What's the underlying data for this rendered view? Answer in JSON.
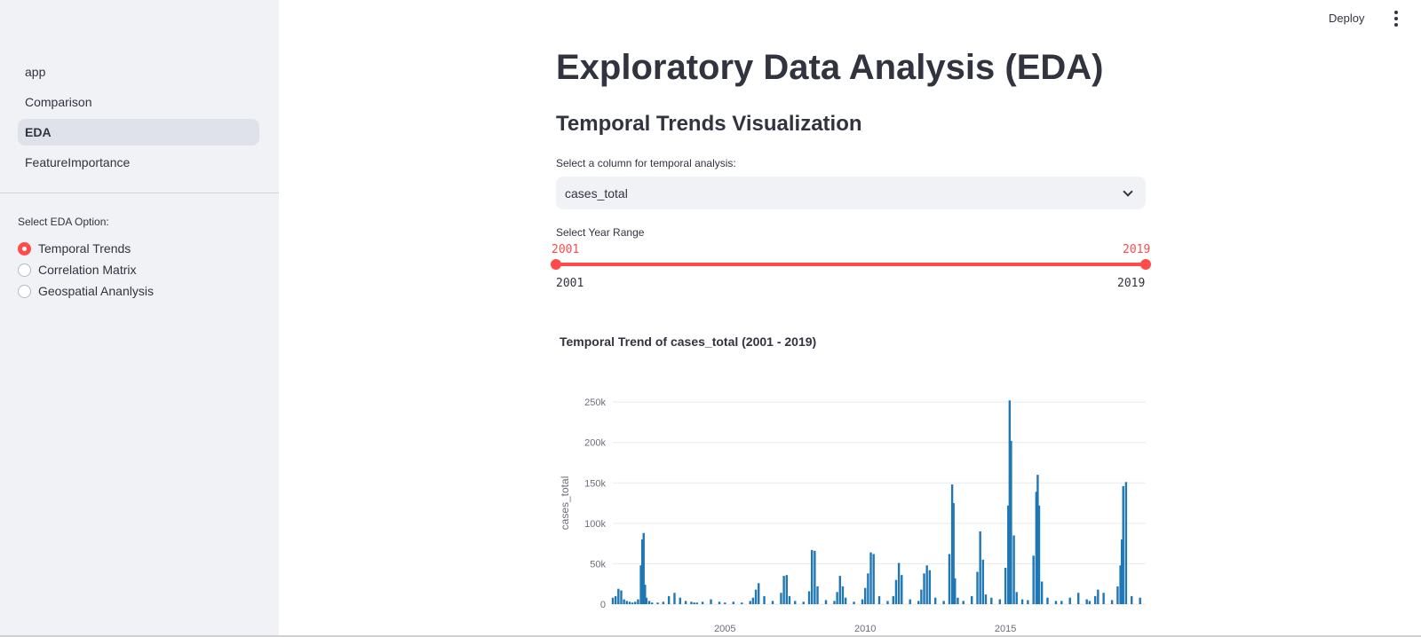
{
  "sidebar": {
    "nav": [
      {
        "label": "app"
      },
      {
        "label": "Comparison"
      },
      {
        "label": "EDA"
      },
      {
        "label": "FeatureImportance"
      }
    ],
    "active_nav": "EDA",
    "radio_title": "Select EDA Option:",
    "radio_options": [
      {
        "label": "Temporal Trends"
      },
      {
        "label": "Correlation Matrix"
      },
      {
        "label": "Geospatial Ananlysis"
      }
    ],
    "radio_selected": "Temporal Trends"
  },
  "header": {
    "deploy_label": "Deploy"
  },
  "main": {
    "title": "Exploratory Data Analysis (EDA)",
    "section_title": "Temporal Trends Visualization",
    "column_select": {
      "label": "Select a column for temporal analysis:",
      "value": "cases_total"
    },
    "year_slider": {
      "label": "Select Year Range",
      "low_value": "2001",
      "high_value": "2019",
      "min_label": "2001",
      "max_label": "2019",
      "accent": "#ff4b4b"
    }
  },
  "chart_data": {
    "type": "bar",
    "title": "Temporal Trend of cases_total (2001 - 2019)",
    "xlabel": "",
    "ylabel": "cases_total",
    "ylim": [
      0,
      260000
    ],
    "y_ticks": [
      "0",
      "50k",
      "100k",
      "150k",
      "200k",
      "250k"
    ],
    "y_tick_values": [
      0,
      50000,
      100000,
      150000,
      200000,
      250000
    ],
    "x_ticks": [
      "2005",
      "2010",
      "2015"
    ],
    "x_tick_values": [
      2005,
      2010,
      2015
    ],
    "xlim": [
      2001,
      2020
    ],
    "grid": true,
    "color": "#1f77b4",
    "x": [
      2001.0,
      2001.1,
      2001.2,
      2001.3,
      2001.4,
      2001.5,
      2001.6,
      2001.7,
      2001.8,
      2001.9,
      2002.0,
      2002.05,
      2002.1,
      2002.15,
      2002.2,
      2002.3,
      2002.4,
      2002.6,
      2002.8,
      2003.0,
      2003.2,
      2003.4,
      2003.6,
      2003.8,
      2003.9,
      2004.0,
      2004.2,
      2004.5,
      2004.8,
      2005.0,
      2005.3,
      2005.6,
      2005.9,
      2006.0,
      2006.1,
      2006.2,
      2006.4,
      2006.7,
      2007.0,
      2007.1,
      2007.2,
      2007.3,
      2007.5,
      2007.8,
      2008.0,
      2008.1,
      2008.2,
      2008.3,
      2008.6,
      2008.9,
      2009.0,
      2009.1,
      2009.2,
      2009.3,
      2009.6,
      2009.9,
      2010.0,
      2010.1,
      2010.2,
      2010.3,
      2010.5,
      2010.8,
      2011.0,
      2011.1,
      2011.2,
      2011.3,
      2011.6,
      2011.9,
      2012.0,
      2012.1,
      2012.2,
      2012.3,
      2012.5,
      2012.8,
      2013.0,
      2013.1,
      2013.15,
      2013.2,
      2013.3,
      2013.5,
      2013.8,
      2014.0,
      2014.1,
      2014.2,
      2014.3,
      2014.5,
      2014.8,
      2015.0,
      2015.1,
      2015.15,
      2015.2,
      2015.3,
      2015.4,
      2015.6,
      2015.8,
      2016.0,
      2016.1,
      2016.15,
      2016.2,
      2016.3,
      2016.5,
      2016.8,
      2017.0,
      2017.3,
      2017.6,
      2017.9,
      2018.0,
      2018.2,
      2018.3,
      2018.5,
      2018.8,
      2019.0,
      2019.1,
      2019.15,
      2019.2,
      2019.3,
      2019.5,
      2019.8
    ],
    "values": [
      8000,
      10000,
      19000,
      17000,
      6000,
      4000,
      3000,
      2000,
      3000,
      6000,
      48000,
      80000,
      88000,
      24000,
      8000,
      4000,
      2000,
      2000,
      3000,
      10000,
      14000,
      8000,
      4000,
      3000,
      2000,
      2000,
      3000,
      6000,
      3000,
      2000,
      3000,
      2000,
      4000,
      8000,
      18000,
      26000,
      10000,
      4000,
      14000,
      35000,
      36000,
      10000,
      4000,
      3000,
      16000,
      67000,
      66000,
      22000,
      5000,
      4000,
      15000,
      35000,
      22000,
      8000,
      3000,
      6000,
      20000,
      38000,
      64000,
      62000,
      10000,
      4000,
      10000,
      30000,
      51000,
      36000,
      6000,
      4000,
      18000,
      38000,
      48000,
      42000,
      8000,
      4000,
      62000,
      148000,
      125000,
      32000,
      8000,
      4000,
      10000,
      40000,
      90000,
      55000,
      12000,
      8000,
      6000,
      45000,
      122000,
      252000,
      202000,
      85000,
      15000,
      6000,
      5000,
      60000,
      139000,
      160000,
      122000,
      28000,
      8000,
      4000,
      4000,
      8000,
      14000,
      6000,
      4000,
      10000,
      18000,
      14000,
      5000,
      22000,
      48000,
      80000,
      146000,
      151000,
      10000,
      8000
    ]
  }
}
